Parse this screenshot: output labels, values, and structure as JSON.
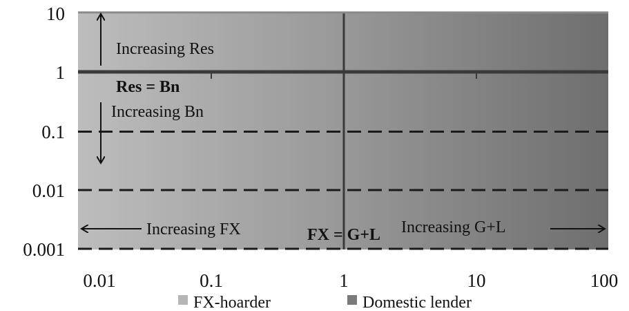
{
  "chart_data": {
    "type": "area",
    "x_scale": "log",
    "y_scale": "log",
    "xlim": [
      0.01,
      100
    ],
    "ylim": [
      0.001,
      10
    ],
    "x_ticks": [
      "0.01",
      "0.1",
      "1",
      "10",
      "100"
    ],
    "y_ticks": [
      "10",
      "1",
      "0.1",
      "0.01",
      "0.001"
    ],
    "grid": "dashed horizontal lines at 0.1, 0.01 and 0.001",
    "series": [
      {
        "name": "FX-hoarder",
        "color": "#b5b5b5",
        "x_range": [
          0.01,
          1
        ]
      },
      {
        "name": "Domestic lender",
        "color": "#7a7a7a",
        "x_range": [
          1,
          100
        ]
      }
    ],
    "reference_lines": [
      {
        "orientation": "vertical",
        "x": 1,
        "label": "FX = G+L"
      },
      {
        "orientation": "horizontal",
        "y": 1,
        "label": "Res = Bn"
      }
    ],
    "annotations": [
      {
        "text": "Increasing Res",
        "arrow": "up"
      },
      {
        "text": "Increasing Bn",
        "arrow": "down"
      },
      {
        "text": "Increasing FX",
        "arrow": "left"
      },
      {
        "text": "Increasing G+L",
        "arrow": "right"
      }
    ],
    "legend": {
      "placement": "bottom",
      "entries": [
        "FX-hoarder",
        "Domestic lender"
      ]
    }
  }
}
